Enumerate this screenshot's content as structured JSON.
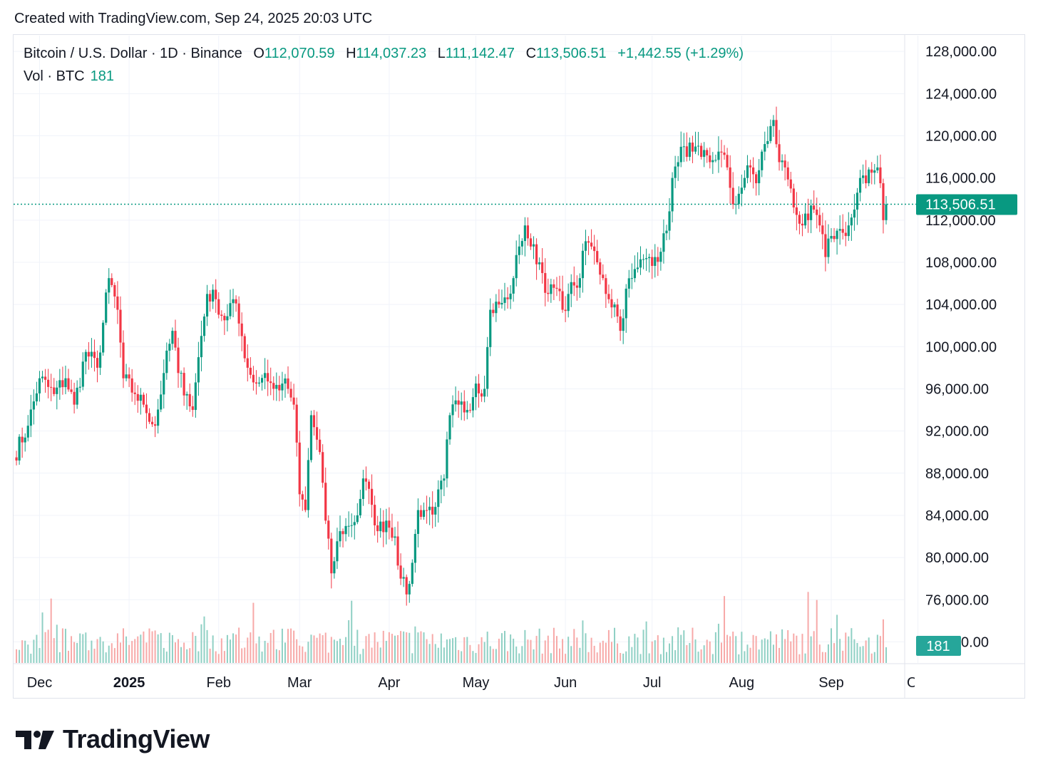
{
  "header": {
    "created_text": "Created with TradingView.com, Sep 24, 2025 20:03 UTC"
  },
  "legend": {
    "symbol": "Bitcoin / U.S. Dollar · 1D · Binance",
    "open_label": "O",
    "open": "112,070.59",
    "high_label": "H",
    "high": "114,037.23",
    "low_label": "L",
    "low": "111,142.47",
    "close_label": "C",
    "close": "113,506.51",
    "change": "+1,442.55 (+1.29%)",
    "vol_label": "Vol · BTC",
    "vol_value": "181"
  },
  "brand": {
    "name": "TradingView"
  },
  "colors": {
    "up": "#089981",
    "down": "#f23645",
    "up_vol": "#8fd0c4",
    "down_vol": "#f7a9a8",
    "grid": "#f0f3fa",
    "axis_text": "#131722"
  },
  "chart_data": {
    "type": "candlestick",
    "title": "Bitcoin / U.S. Dollar · 1D · Binance",
    "ylim": [
      70000,
      129500
    ],
    "y_ticks": [
      72000,
      76000,
      80000,
      84000,
      88000,
      92000,
      96000,
      100000,
      104000,
      108000,
      112000,
      116000,
      120000,
      124000,
      128000
    ],
    "y_tick_labels": [
      "72,000.00",
      "76,000.00",
      "80,000.00",
      "84,000.00",
      "88,000.00",
      "92,000.00",
      "96,000.00",
      "100,000.00",
      "104,000.00",
      "108,000.00",
      "112,000.00",
      "116,000.00",
      "120,000.00",
      "124,000.00",
      "128,000.00"
    ],
    "x_tick_labels": [
      "Dec",
      "2025",
      "Feb",
      "Mar",
      "Apr",
      "May",
      "Jun",
      "Jul",
      "Aug",
      "Sep",
      "Oct"
    ],
    "x_tick_days": [
      9,
      40,
      71,
      99,
      130,
      160,
      191,
      221,
      252,
      283,
      313
    ],
    "last_price": 113506.51,
    "last_price_label": "113,506.51",
    "last_volume_label": "181",
    "n_days": 302,
    "anchors": [
      [
        0,
        89500
      ],
      [
        5,
        92500
      ],
      [
        9,
        97000
      ],
      [
        14,
        95500
      ],
      [
        18,
        97000
      ],
      [
        21,
        94500
      ],
      [
        25,
        99500
      ],
      [
        29,
        98000
      ],
      [
        33,
        106500
      ],
      [
        36,
        103500
      ],
      [
        38,
        97000
      ],
      [
        42,
        95500
      ],
      [
        45,
        94500
      ],
      [
        49,
        92500
      ],
      [
        52,
        97500
      ],
      [
        55,
        101500
      ],
      [
        57,
        97500
      ],
      [
        60,
        95500
      ],
      [
        62,
        94000
      ],
      [
        64,
        99000
      ],
      [
        67,
        105000
      ],
      [
        70,
        104500
      ],
      [
        73,
        102500
      ],
      [
        76,
        104500
      ],
      [
        79,
        101000
      ],
      [
        81,
        98000
      ],
      [
        84,
        96500
      ],
      [
        87,
        97500
      ],
      [
        90,
        96000
      ],
      [
        93,
        96500
      ],
      [
        95,
        96000
      ],
      [
        97,
        94500
      ],
      [
        99,
        86000
      ],
      [
        101,
        84500
      ],
      [
        103,
        93500
      ],
      [
        106,
        90000
      ],
      [
        108,
        83500
      ],
      [
        110,
        78500
      ],
      [
        113,
        82500
      ],
      [
        116,
        83000
      ],
      [
        119,
        84000
      ],
      [
        121,
        87500
      ],
      [
        124,
        85000
      ],
      [
        126,
        82500
      ],
      [
        129,
        83500
      ],
      [
        132,
        82000
      ],
      [
        134,
        78000
      ],
      [
        136,
        76500
      ],
      [
        138,
        79500
      ],
      [
        140,
        84500
      ],
      [
        142,
        84500
      ],
      [
        146,
        84800
      ],
      [
        149,
        87500
      ],
      [
        151,
        93500
      ],
      [
        154,
        94500
      ],
      [
        157,
        94000
      ],
      [
        160,
        96500
      ],
      [
        163,
        96000
      ],
      [
        165,
        103500
      ],
      [
        168,
        104000
      ],
      [
        171,
        104500
      ],
      [
        173,
        106500
      ],
      [
        175,
        109500
      ],
      [
        177,
        111500
      ],
      [
        179,
        109500
      ],
      [
        182,
        108000
      ],
      [
        185,
        105000
      ],
      [
        188,
        105500
      ],
      [
        190,
        103500
      ],
      [
        192,
        105000
      ],
      [
        194,
        105800
      ],
      [
        196,
        106500
      ],
      [
        198,
        110000
      ],
      [
        200,
        109500
      ],
      [
        202,
        108000
      ],
      [
        204,
        106500
      ],
      [
        206,
        104500
      ],
      [
        208,
        104000
      ],
      [
        210,
        101500
      ],
      [
        212,
        105500
      ],
      [
        214,
        106500
      ],
      [
        216,
        107500
      ],
      [
        218,
        108300
      ],
      [
        220,
        108500
      ],
      [
        222,
        108500
      ],
      [
        224,
        109000
      ],
      [
        226,
        111000
      ],
      [
        228,
        116000
      ],
      [
        230,
        117500
      ],
      [
        232,
        119000
      ],
      [
        235,
        118500
      ],
      [
        238,
        118000
      ],
      [
        241,
        117500
      ],
      [
        244,
        118500
      ],
      [
        247,
        117000
      ],
      [
        249,
        113500
      ],
      [
        251,
        114500
      ],
      [
        253,
        116000
      ],
      [
        255,
        117000
      ],
      [
        257,
        115500
      ],
      [
        259,
        118500
      ],
      [
        261,
        119500
      ],
      [
        263,
        121500
      ],
      [
        265,
        117500
      ],
      [
        267,
        117000
      ],
      [
        269,
        115000
      ],
      [
        271,
        112500
      ],
      [
        273,
        111500
      ],
      [
        275,
        112000
      ],
      [
        277,
        113000
      ],
      [
        279,
        111500
      ],
      [
        281,
        108500
      ],
      [
        283,
        110500
      ],
      [
        285,
        111000
      ],
      [
        287,
        110800
      ],
      [
        289,
        111500
      ],
      [
        291,
        113000
      ],
      [
        293,
        116000
      ],
      [
        295,
        115500
      ],
      [
        297,
        116500
      ],
      [
        299,
        117000
      ],
      [
        300,
        115500
      ],
      [
        301,
        112000
      ],
      [
        302,
        113506.51
      ]
    ]
  }
}
